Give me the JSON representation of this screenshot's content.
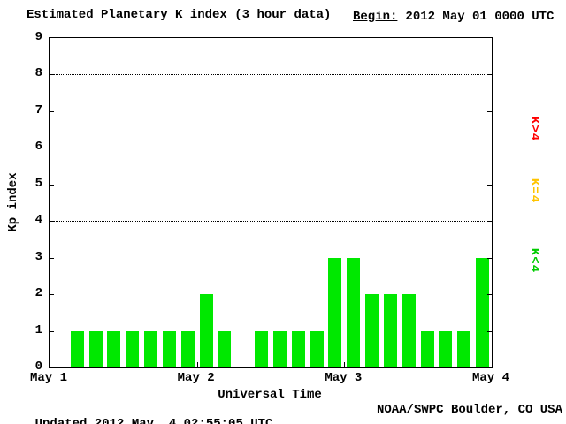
{
  "chart_data": {
    "type": "bar",
    "title": "Estimated Planetary K index (3 hour data)",
    "begin_label": "Begin:",
    "begin_value": "2012 May 01 0000 UTC",
    "updated_label": "Updated",
    "updated_value": " 2012 May  4 02:55:05 UTC",
    "credit": "NOAA/SWPC Boulder, CO USA",
    "xlabel": "Universal Time",
    "ylabel": "Kp index",
    "ylim": [
      0,
      9
    ],
    "yticks": [
      0,
      1,
      2,
      3,
      4,
      5,
      6,
      7,
      8,
      9
    ],
    "grid_y": [
      4,
      6,
      8
    ],
    "grid_style": "dotted",
    "x_day_labels": [
      "May 1",
      "May 2",
      "May 3",
      "May 4"
    ],
    "slots_per_day": 8,
    "interval_hours": 3,
    "values": [
      null,
      1,
      1,
      1,
      1,
      1,
      1,
      1,
      2,
      1,
      null,
      1,
      1,
      1,
      1,
      3,
      3,
      2,
      2,
      2,
      1,
      1,
      1,
      3
    ],
    "bar_color": "#00e800",
    "legend": [
      {
        "label": "K>4",
        "color": "#ff0000",
        "position_kp": 6.5
      },
      {
        "label": "K=4",
        "color": "#ffc400",
        "position_kp": 4.8
      },
      {
        "label": "K<4",
        "color": "#00cc00",
        "position_kp": 2.9
      }
    ],
    "legend_position": "right"
  }
}
